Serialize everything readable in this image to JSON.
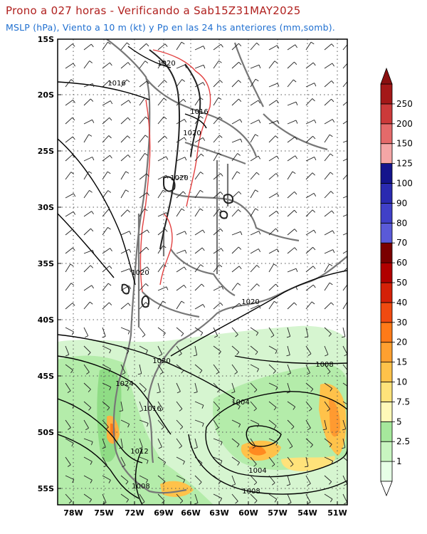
{
  "title": "Prono a 027 horas - Verificando a Sab15Z31MAY2025",
  "subtitle": "MSLP (hPa), Viento a 10 m (kt) y Pp en las 24 hs anteriores (mm,somb).",
  "lat_labels": [
    "15S",
    "20S",
    "25S",
    "30S",
    "35S",
    "40S",
    "45S",
    "50S",
    "55S"
  ],
  "lon_labels": [
    "78W",
    "75W",
    "72W",
    "69W",
    "66W",
    "63W",
    "60W",
    "57W",
    "54W",
    "51W"
  ],
  "colorbar": {
    "labels": [
      "1",
      "2.5",
      "5",
      "7.5",
      "10",
      "15",
      "20",
      "30",
      "40",
      "50",
      "60",
      "70",
      "80",
      "90",
      "100",
      "125",
      "150",
      "200",
      "250"
    ],
    "colors": [
      "#e6ffe6",
      "#c8f5c0",
      "#a6e89c",
      "#fff9b8",
      "#ffe27a",
      "#ffc24a",
      "#ffa030",
      "#ff7a18",
      "#f04a10",
      "#d42008",
      "#b00000",
      "#7a0000",
      "#5a5ad8",
      "#4040c8",
      "#2a2ab0",
      "#14148c",
      "#f4a6a6",
      "#e46a6a",
      "#cc3a3a",
      "#a41818"
    ]
  },
  "isobars": [
    {
      "label": "1020"
    },
    {
      "label": "1016"
    },
    {
      "label": "1016"
    },
    {
      "label": "1020"
    },
    {
      "label": "1020"
    },
    {
      "label": "1020"
    },
    {
      "label": "1020"
    },
    {
      "label": "1020"
    },
    {
      "label": "1008"
    },
    {
      "label": "1024"
    },
    {
      "label": "1004"
    },
    {
      "label": "1016"
    },
    {
      "label": "1012"
    },
    {
      "label": "1004"
    },
    {
      "label": "1008"
    },
    {
      "label": "1008"
    }
  ]
}
